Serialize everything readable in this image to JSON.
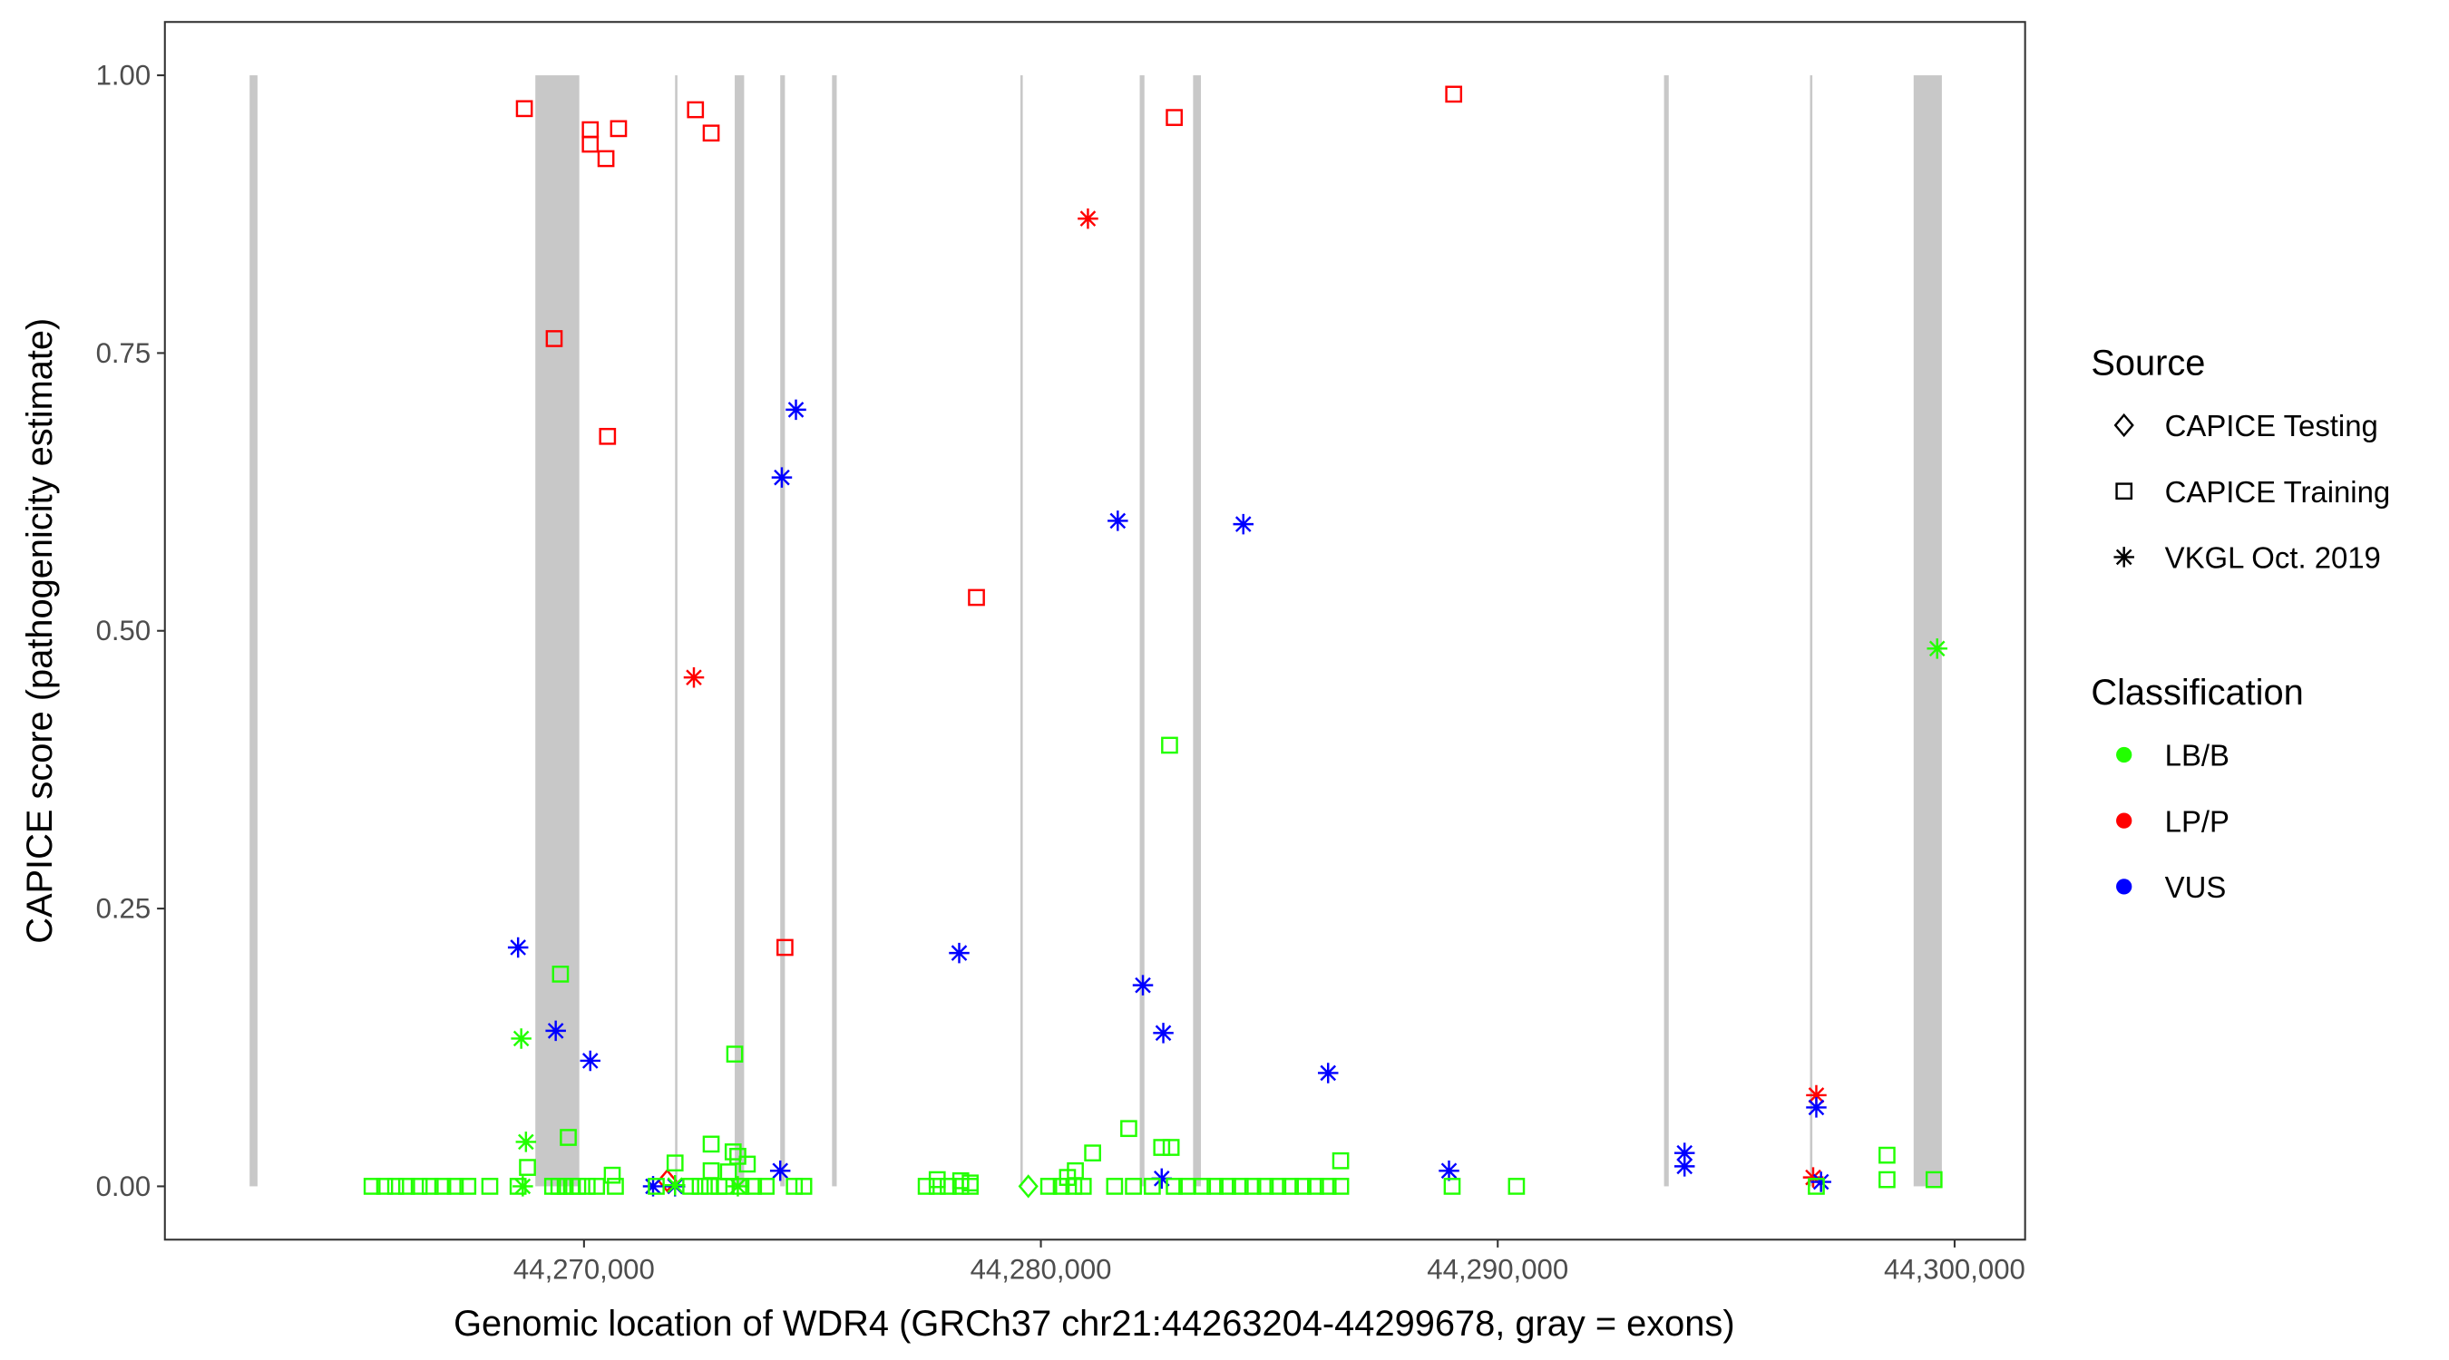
{
  "chart_data": {
    "type": "scatter",
    "xlabel": "Genomic location of WDR4 (GRCh37 chr21:44263204-44299678, gray = exons)",
    "ylabel": "CAPICE score (pathogenicity estimate)",
    "xlim": [
      44260826,
      44301543
    ],
    "ylim": [
      -0.048,
      1.048
    ],
    "x_ticks": [
      44270000,
      44280000,
      44290000,
      44300000
    ],
    "x_tick_labels": [
      "44,270,000",
      "44,280,000",
      "44,290,000",
      "44,300,000"
    ],
    "y_ticks": [
      0,
      0.25,
      0.5,
      0.75,
      1.0
    ],
    "y_tick_labels": [
      "0.00",
      "0.25",
      "0.50",
      "0.75",
      "1.00"
    ],
    "grid": false,
    "exons": [
      [
        44262681,
        44262853
      ],
      [
        44268935,
        44269897
      ],
      [
        44271993,
        44272027
      ],
      [
        44273299,
        44273505
      ],
      [
        44274295,
        44274398
      ],
      [
        44275429,
        44275532
      ],
      [
        44279552,
        44279587
      ],
      [
        44282164,
        44282267
      ],
      [
        44283332,
        44283503
      ],
      [
        44293640,
        44293743
      ],
      [
        44296835,
        44296869
      ],
      [
        44299103,
        44299721
      ]
    ],
    "legend": {
      "placement": "right",
      "source_title": "Source",
      "source_items": [
        {
          "key": "testing",
          "label": "CAPICE Testing",
          "shape": "diamond"
        },
        {
          "key": "training",
          "label": "CAPICE Training",
          "shape": "square"
        },
        {
          "key": "vkgl",
          "label": "VKGL Oct. 2019",
          "shape": "asterisk"
        }
      ],
      "class_title": "Classification",
      "class_items": [
        {
          "key": "LB/B",
          "label": "LB/B",
          "color": "#22FF00"
        },
        {
          "key": "LP/P",
          "label": "LP/P",
          "color": "#FF0000"
        },
        {
          "key": "VUS",
          "label": "VUS",
          "color": "#0000FF"
        }
      ]
    },
    "series": [
      {
        "source": "training",
        "class": "LP/P",
        "points": [
          [
            44268694,
            0.97
          ],
          [
            44270137,
            0.951
          ],
          [
            44270137,
            0.938
          ],
          [
            44270481,
            0.925
          ],
          [
            44270756,
            0.952
          ],
          [
            44272440,
            0.969
          ],
          [
            44272783,
            0.948
          ],
          [
            44269347,
            0.763
          ],
          [
            44270515,
            0.675
          ],
          [
            44282920,
            0.962
          ],
          [
            44289036,
            0.983
          ],
          [
            44278590,
            0.53
          ],
          [
            44274398,
            0.215
          ]
        ]
      },
      {
        "source": "vkgl",
        "class": "LP/P",
        "points": [
          [
            44281030,
            0.871
          ],
          [
            44272405,
            0.458
          ],
          [
            44296973,
            0.082
          ],
          [
            44296904,
            0.008
          ]
        ]
      },
      {
        "source": "testing",
        "class": "LP/P",
        "points": [
          [
            44271821,
            0.005
          ]
        ]
      },
      {
        "source": "vkgl",
        "class": "VUS",
        "points": [
          [
            44274639,
            0.699
          ],
          [
            44274330,
            0.638
          ],
          [
            44281683,
            0.599
          ],
          [
            44284431,
            0.596
          ],
          [
            44268557,
            0.215
          ],
          [
            44278212,
            0.21
          ],
          [
            44269381,
            0.14
          ],
          [
            44270137,
            0.113
          ],
          [
            44282233,
            0.181
          ],
          [
            44282680,
            0.138
          ],
          [
            44286287,
            0.102
          ],
          [
            44274295,
            0.014
          ],
          [
            44282645,
            0.007
          ],
          [
            44288933,
            0.014
          ],
          [
            44294089,
            0.03
          ],
          [
            44294089,
            0.018
          ],
          [
            44296973,
            0.071
          ],
          [
            44297076,
            0.004
          ],
          [
            44271512,
            0.0
          ],
          [
            44271993,
            0.0
          ]
        ]
      },
      {
        "source": "vkgl",
        "class": "LB/B",
        "points": [
          [
            44299618,
            0.484
          ],
          [
            44268626,
            0.133
          ],
          [
            44268729,
            0.04
          ],
          [
            44268660,
            0.0
          ],
          [
            44271993,
            0.001
          ],
          [
            44273367,
            0.0
          ]
        ]
      },
      {
        "source": "testing",
        "class": "LB/B",
        "points": [
          [
            44279725,
            0.0
          ]
        ]
      },
      {
        "source": "training",
        "class": "LB/B",
        "points": [
          [
            44269485,
            0.191
          ],
          [
            44273299,
            0.119
          ],
          [
            44282817,
            0.397
          ],
          [
            44269656,
            0.044
          ],
          [
            44268763,
            0.017
          ],
          [
            44270618,
            0.01
          ],
          [
            44271993,
            0.021
          ],
          [
            44272783,
            0.038
          ],
          [
            44273264,
            0.031
          ],
          [
            44273367,
            0.027
          ],
          [
            44273574,
            0.02
          ],
          [
            44272783,
            0.014
          ],
          [
            44273161,
            0.013
          ],
          [
            44281923,
            0.052
          ],
          [
            44281133,
            0.03
          ],
          [
            44280755,
            0.014
          ],
          [
            44280583,
            0.008
          ],
          [
            44282645,
            0.035
          ],
          [
            44282851,
            0.035
          ],
          [
            44286562,
            0.023
          ],
          [
            44298520,
            0.028
          ],
          [
            44298520,
            0.006
          ],
          [
            44299550,
            0.006
          ],
          [
            44277731,
            0.006
          ],
          [
            44278246,
            0.005
          ],
          [
            44278453,
            0.003
          ],
          [
            44265361,
            0
          ],
          [
            44265636,
            0
          ],
          [
            44265877,
            0
          ],
          [
            44266117,
            0
          ],
          [
            44266392,
            0
          ],
          [
            44266633,
            0
          ],
          [
            44266908,
            0
          ],
          [
            44267183,
            0
          ],
          [
            44267457,
            0
          ],
          [
            44267938,
            0
          ],
          [
            44268557,
            0
          ],
          [
            44269313,
            0
          ],
          [
            44269450,
            0
          ],
          [
            44269588,
            0
          ],
          [
            44269725,
            0
          ],
          [
            44269863,
            0
          ],
          [
            44270069,
            0
          ],
          [
            44270275,
            0
          ],
          [
            44270687,
            0
          ],
          [
            44271581,
            0
          ],
          [
            44272336,
            0
          ],
          [
            44272543,
            0
          ],
          [
            44272749,
            0
          ],
          [
            44272955,
            0
          ],
          [
            44273092,
            0
          ],
          [
            44273436,
            0
          ],
          [
            44273711,
            0
          ],
          [
            44273986,
            0
          ],
          [
            44274604,
            0
          ],
          [
            44274810,
            0
          ],
          [
            44277490,
            0
          ],
          [
            44277731,
            0
          ],
          [
            44277972,
            0
          ],
          [
            44278246,
            0
          ],
          [
            44278453,
            0
          ],
          [
            44280171,
            0
          ],
          [
            44280446,
            0
          ],
          [
            44280721,
            0
          ],
          [
            44280927,
            0
          ],
          [
            44281614,
            0
          ],
          [
            44282026,
            0
          ],
          [
            44282439,
            0
          ],
          [
            44282920,
            0
          ],
          [
            44283195,
            0
          ],
          [
            44283538,
            0
          ],
          [
            44283813,
            0
          ],
          [
            44284088,
            0
          ],
          [
            44284363,
            0
          ],
          [
            44284638,
            0
          ],
          [
            44284912,
            0
          ],
          [
            44285187,
            0
          ],
          [
            44285462,
            0
          ],
          [
            44285737,
            0
          ],
          [
            44286012,
            0
          ],
          [
            44286287,
            0
          ],
          [
            44286562,
            0
          ],
          [
            44289002,
            0
          ],
          [
            44290410,
            0
          ],
          [
            44296973,
            0
          ]
        ]
      }
    ]
  }
}
